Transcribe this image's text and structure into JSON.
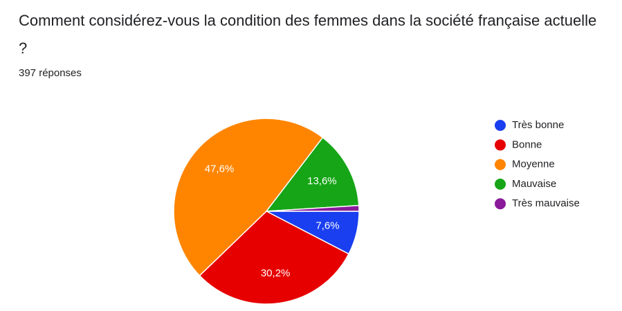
{
  "chart_data": {
    "type": "pie",
    "title": "Comment considérez-vous la condition des femmes dans la société française actuelle ?",
    "subtitle": "397 réponses",
    "categories": [
      "Très bonne",
      "Bonne",
      "Moyenne",
      "Mauvaise",
      "Très mauvaise"
    ],
    "values": [
      7.6,
      30.2,
      47.6,
      13.6,
      1.0
    ],
    "value_labels": [
      "7,6%",
      "30,2%",
      "47,6%",
      "13,6%",
      null
    ],
    "colors": [
      "#1a3ff0",
      "#e60000",
      "#ff8500",
      "#16a516",
      "#8a1a9a"
    ],
    "legend": "right"
  }
}
